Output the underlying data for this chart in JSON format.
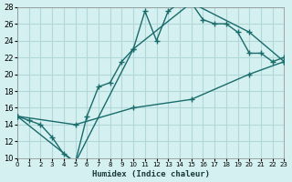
{
  "xlabel": "Humidex (Indice chaleur)",
  "bg_color": "#d4f0f0",
  "grid_color": "#b0d8d8",
  "line_color": "#1a6b6b",
  "xlim": [
    0,
    23
  ],
  "ylim": [
    10,
    28
  ],
  "xticks": [
    0,
    1,
    2,
    3,
    4,
    5,
    6,
    7,
    8,
    9,
    10,
    11,
    12,
    13,
    14,
    15,
    16,
    17,
    18,
    19,
    20,
    21,
    22,
    23
  ],
  "yticks": [
    10,
    12,
    14,
    16,
    18,
    20,
    22,
    24,
    26,
    28
  ],
  "line1": {
    "x": [
      0,
      1,
      2,
      3,
      4,
      5,
      6,
      7,
      8,
      9,
      10,
      11,
      12,
      13,
      14,
      15,
      16,
      17,
      18,
      19,
      20,
      21,
      22,
      23
    ],
    "y": [
      15,
      14.5,
      14,
      12.5,
      10.5,
      9.5,
      15,
      18.5,
      19,
      21.5,
      23,
      27.5,
      24,
      27.5,
      28.5,
      28.5,
      26.5,
      26,
      26,
      25,
      22.5,
      22.5,
      21.5,
      22
    ]
  },
  "line2": {
    "x": [
      0,
      5,
      10,
      15,
      20,
      23
    ],
    "y": [
      15,
      9.5,
      23,
      28.5,
      25,
      21.5
    ]
  },
  "line3": {
    "x": [
      0,
      5,
      10,
      15,
      20,
      23
    ],
    "y": [
      15,
      14,
      16,
      17,
      20,
      21.5
    ]
  }
}
